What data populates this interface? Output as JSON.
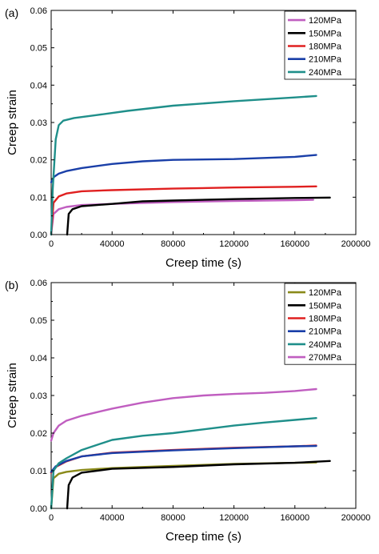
{
  "chart_data": [
    {
      "type": "line",
      "panel_label": "(a)",
      "xlabel": "Creep time (s)",
      "ylabel": "Creep strain",
      "xlim": [
        0,
        200000
      ],
      "ylim": [
        0,
        0.06
      ],
      "xticks": [
        0,
        40000,
        80000,
        120000,
        160000,
        200000
      ],
      "xtick_labels": [
        "0",
        "40000",
        "80000",
        "120000",
        "160000",
        "200000"
      ],
      "yticks": [
        0,
        0.01,
        0.02,
        0.03,
        0.04,
        0.05,
        0.06
      ],
      "ytick_labels": [
        "0.00",
        "0.01",
        "0.02",
        "0.03",
        "0.04",
        "0.05",
        "0.06"
      ],
      "grid": false,
      "legend_position": "top-right",
      "series": [
        {
          "name": "120MPa",
          "color": "#c05ec0",
          "points": [
            [
              0,
              0
            ],
            [
              1500,
              0.0055
            ],
            [
              5000,
              0.0068
            ],
            [
              10000,
              0.0074
            ],
            [
              20000,
              0.0079
            ],
            [
              40000,
              0.0082
            ],
            [
              80000,
              0.0087
            ],
            [
              120000,
              0.009
            ],
            [
              160000,
              0.0092
            ],
            [
              172000,
              0.0093
            ]
          ]
        },
        {
          "name": "150MPa",
          "color": "#000000",
          "points": [
            [
              10500,
              0
            ],
            [
              11500,
              0.0055
            ],
            [
              14000,
              0.0068
            ],
            [
              20000,
              0.0076
            ],
            [
              40000,
              0.0082
            ],
            [
              60000,
              0.0089
            ],
            [
              80000,
              0.0091
            ],
            [
              120000,
              0.0095
            ],
            [
              160000,
              0.0098
            ],
            [
              183000,
              0.0099
            ]
          ]
        },
        {
          "name": "180MPa",
          "color": "#e02020",
          "points": [
            [
              0,
              0
            ],
            [
              1500,
              0.0085
            ],
            [
              5000,
              0.0102
            ],
            [
              10000,
              0.011
            ],
            [
              20000,
              0.0116
            ],
            [
              40000,
              0.0119
            ],
            [
              80000,
              0.0123
            ],
            [
              120000,
              0.0126
            ],
            [
              160000,
              0.0128
            ],
            [
              174000,
              0.0129
            ]
          ]
        },
        {
          "name": "210MPa",
          "color": "#1a3fa8",
          "points": [
            [
              0,
              0.014
            ],
            [
              2000,
              0.0155
            ],
            [
              5000,
              0.0163
            ],
            [
              10000,
              0.017
            ],
            [
              20000,
              0.0178
            ],
            [
              40000,
              0.0189
            ],
            [
              60000,
              0.0196
            ],
            [
              80000,
              0.02
            ],
            [
              120000,
              0.0202
            ],
            [
              160000,
              0.0208
            ],
            [
              174000,
              0.0213
            ]
          ]
        },
        {
          "name": "240MPa",
          "color": "#1f8f8a",
          "points": [
            [
              0,
              0
            ],
            [
              1000,
              0.012
            ],
            [
              3000,
              0.0255
            ],
            [
              5000,
              0.0293
            ],
            [
              8000,
              0.0305
            ],
            [
              15000,
              0.0312
            ],
            [
              30000,
              0.032
            ],
            [
              50000,
              0.0331
            ],
            [
              80000,
              0.0345
            ],
            [
              120000,
              0.0357
            ],
            [
              160000,
              0.0367
            ],
            [
              174000,
              0.0371
            ]
          ]
        }
      ]
    },
    {
      "type": "line",
      "panel_label": "(b)",
      "xlabel": "Creep time (s)",
      "ylabel": "Creep strain",
      "xlim": [
        0,
        200000
      ],
      "ylim": [
        0,
        0.06
      ],
      "xticks": [
        0,
        40000,
        80000,
        120000,
        160000,
        200000
      ],
      "xtick_labels": [
        "0",
        "40000",
        "80000",
        "120000",
        "160000",
        "200000"
      ],
      "yticks": [
        0,
        0.01,
        0.02,
        0.03,
        0.04,
        0.05,
        0.06
      ],
      "ytick_labels": [
        "0.00",
        "0.01",
        "0.02",
        "0.03",
        "0.04",
        "0.05",
        "0.06"
      ],
      "grid": false,
      "legend_position": "top-right",
      "series": [
        {
          "name": "120MPa",
          "color": "#8a8a1a",
          "points": [
            [
              0,
              0
            ],
            [
              1500,
              0.008
            ],
            [
              5000,
              0.0092
            ],
            [
              10000,
              0.0097
            ],
            [
              20000,
              0.0102
            ],
            [
              40000,
              0.0107
            ],
            [
              80000,
              0.0113
            ],
            [
              120000,
              0.0118
            ],
            [
              160000,
              0.0121
            ],
            [
              174000,
              0.0122
            ]
          ]
        },
        {
          "name": "150MPa",
          "color": "#000000",
          "points": [
            [
              10500,
              0
            ],
            [
              11500,
              0.0062
            ],
            [
              14000,
              0.0082
            ],
            [
              20000,
              0.0095
            ],
            [
              40000,
              0.0105
            ],
            [
              80000,
              0.011
            ],
            [
              120000,
              0.0117
            ],
            [
              160000,
              0.0121
            ],
            [
              183000,
              0.0126
            ]
          ]
        },
        {
          "name": "180MPa",
          "color": "#e02020",
          "points": [
            [
              0,
              0.0095
            ],
            [
              3000,
              0.011
            ],
            [
              10000,
              0.0125
            ],
            [
              20000,
              0.0138
            ],
            [
              40000,
              0.0148
            ],
            [
              80000,
              0.0155
            ],
            [
              120000,
              0.0161
            ],
            [
              160000,
              0.0165
            ],
            [
              174000,
              0.0167
            ]
          ]
        },
        {
          "name": "210MPa",
          "color": "#1a3fa8",
          "points": [
            [
              0,
              0.0097
            ],
            [
              3000,
              0.0112
            ],
            [
              10000,
              0.0126
            ],
            [
              20000,
              0.0138
            ],
            [
              40000,
              0.0147
            ],
            [
              80000,
              0.0154
            ],
            [
              120000,
              0.016
            ],
            [
              160000,
              0.0165
            ],
            [
              174000,
              0.0166
            ]
          ]
        },
        {
          "name": "240MPa",
          "color": "#1f8f8a",
          "points": [
            [
              0,
              0
            ],
            [
              1500,
              0.01
            ],
            [
              5000,
              0.012
            ],
            [
              10000,
              0.0133
            ],
            [
              20000,
              0.0155
            ],
            [
              40000,
              0.0182
            ],
            [
              60000,
              0.0193
            ],
            [
              80000,
              0.02
            ],
            [
              100000,
              0.021
            ],
            [
              120000,
              0.022
            ],
            [
              140000,
              0.0228
            ],
            [
              160000,
              0.0235
            ],
            [
              174000,
              0.024
            ]
          ]
        },
        {
          "name": "270MPa",
          "color": "#c05ec0",
          "points": [
            [
              0,
              0.018
            ],
            [
              1500,
              0.02
            ],
            [
              5000,
              0.022
            ],
            [
              10000,
              0.0233
            ],
            [
              20000,
              0.0246
            ],
            [
              40000,
              0.0265
            ],
            [
              60000,
              0.0281
            ],
            [
              80000,
              0.0293
            ],
            [
              100000,
              0.03
            ],
            [
              120000,
              0.0304
            ],
            [
              140000,
              0.0307
            ],
            [
              160000,
              0.0312
            ],
            [
              174000,
              0.0317
            ]
          ]
        }
      ]
    }
  ]
}
